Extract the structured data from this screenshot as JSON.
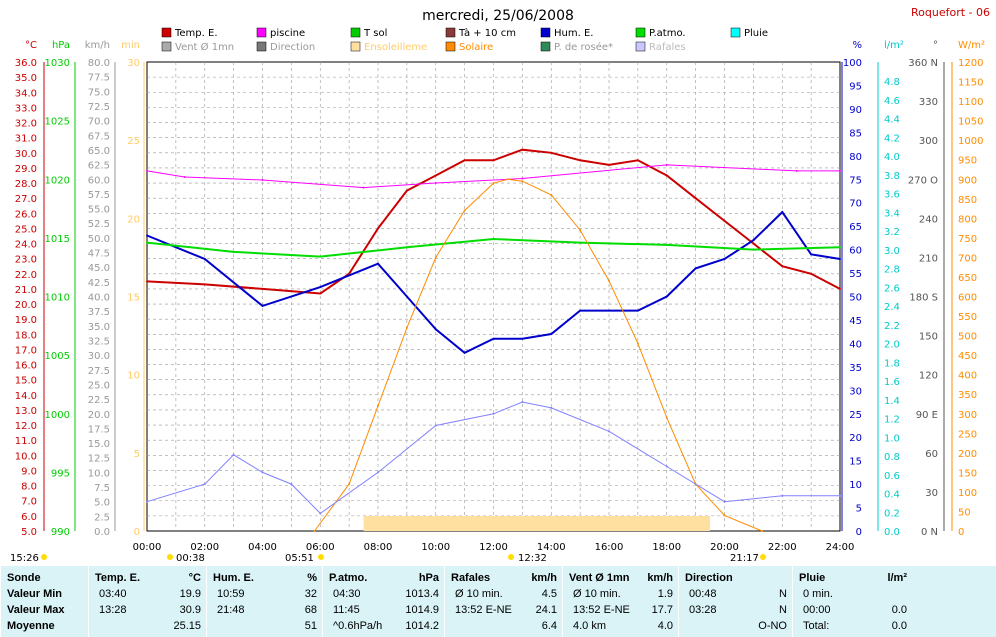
{
  "header": {
    "title": "mercredi, 25/06/2008",
    "station": "Roquefort - 06"
  },
  "legend": [
    {
      "label": "Temp. E.",
      "color": "#cc0000"
    },
    {
      "label": "piscine",
      "color": "#ff00ff"
    },
    {
      "label": "T sol",
      "color": "#00cc00"
    },
    {
      "label": "Tà + 10 cm",
      "color": "#8b3a3a"
    },
    {
      "label": "Hum. E.",
      "color": "#0000cc"
    },
    {
      "label": "P.atmo.",
      "color": "#00dd00"
    },
    {
      "label": "Pluie",
      "color": "#00ffff"
    },
    {
      "label": "Vent Ø 1mn",
      "color": "#aaaaaa"
    },
    {
      "label": "Direction",
      "color": "#777777"
    },
    {
      "label": "Ensoleilleme",
      "color": "#ffe0a0"
    },
    {
      "label": "Solaire",
      "color": "#ff8c00"
    },
    {
      "label": "P. de rosée*",
      "color": "#2e8b57"
    },
    {
      "label": "Rafales",
      "color": "#c8c8ff"
    }
  ],
  "axes": {
    "temp": {
      "unit": "°C",
      "color": "#cc0000",
      "ticks": [
        "35.0",
        "34.0",
        "33.0",
        "32.0",
        "31.0",
        "30.0",
        "29.0",
        "28.0",
        "27.0",
        "26.0",
        "25.0",
        "24.0",
        "23.0",
        "22.0",
        "21.0",
        "20.0",
        "19.0",
        "18.0",
        "17.0",
        "16.0",
        "15.0",
        "14.0",
        "13.0",
        "12.0",
        "11.0",
        "10.0",
        "9.0",
        "8.0",
        "7.0",
        "6.0",
        "5.0",
        "36.0"
      ]
    },
    "hpa": {
      "unit": "hPa",
      "color": "#00cc00",
      "ticks": [
        "1030",
        "1025",
        "1020",
        "1015",
        "1010",
        "1005",
        "1000",
        "995",
        "990"
      ]
    },
    "kmh": {
      "unit": "km/h",
      "color": "#999999",
      "ticks": [
        "80.0",
        "77.5",
        "75.0",
        "72.5",
        "70.0",
        "67.5",
        "65.0",
        "62.5",
        "60.0",
        "57.5",
        "55.0",
        "52.5",
        "50.0",
        "47.5",
        "45.0",
        "42.5",
        "40.0",
        "37.5",
        "35.0",
        "32.5",
        "30.0",
        "27.5",
        "25.0",
        "22.5",
        "20.0",
        "17.5",
        "15.0",
        "12.5",
        "10.0",
        "7.5",
        "5.0",
        "2.5",
        "0.0"
      ]
    },
    "min": {
      "unit": "min",
      "color": "#ffcc66",
      "ticks": [
        "30",
        "25",
        "20",
        "15",
        "10",
        "5",
        "0"
      ]
    },
    "pct": {
      "unit": "%",
      "color": "#0000cc",
      "ticks": [
        "100",
        "95",
        "90",
        "85",
        "80",
        "75",
        "70",
        "65",
        "60",
        "55",
        "50",
        "45",
        "40",
        "35",
        "30",
        "25",
        "20",
        "15",
        "10",
        "5",
        "0"
      ]
    },
    "lm2": {
      "unit": "l/m²",
      "color": "#00cccc",
      "ticks": [
        "4.8",
        "4.6",
        "4.4",
        "4.2",
        "4.0",
        "3.8",
        "3.6",
        "3.4",
        "3.2",
        "3.0",
        "2.8",
        "2.6",
        "2.4",
        "2.2",
        "2.0",
        "1.8",
        "1.6",
        "1.4",
        "1.2",
        "1.0",
        "0.8",
        "0.6",
        "0.4",
        "0.2",
        "0.0"
      ]
    },
    "deg": {
      "unit": "°",
      "color": "#555555",
      "ticks": [
        "360 N",
        "330",
        "300",
        "270 O",
        "240",
        "210",
        "180 S",
        "150",
        "120",
        "90 E",
        "60",
        "30",
        "0 N"
      ]
    },
    "wm2": {
      "unit": "W/m²",
      "color": "#ff8c00",
      "ticks": [
        "1200",
        "1150",
        "1100",
        "1050",
        "1000",
        "950",
        "900",
        "850",
        "800",
        "750",
        "700",
        "650",
        "600",
        "550",
        "500",
        "450",
        "400",
        "350",
        "300",
        "250",
        "200",
        "150",
        "100",
        "50",
        "0"
      ]
    },
    "x": [
      "00:00",
      "02:00",
      "04:00",
      "06:00",
      "08:00",
      "10:00",
      "12:00",
      "14:00",
      "16:00",
      "18:00",
      "20:00",
      "22:00",
      "24:00"
    ]
  },
  "markers": {
    "sunrise_left": "15:26",
    "m1": "00:38",
    "sunrise": "05:51",
    "noon": "12:32",
    "sunset": "21:17"
  },
  "chart_data": {
    "type": "line",
    "x_unit": "hour",
    "series": [
      {
        "name": "Temp. E.",
        "unit": "°C",
        "points": [
          [
            0,
            21.5
          ],
          [
            2,
            21.3
          ],
          [
            4,
            21.0
          ],
          [
            6,
            20.7
          ],
          [
            7,
            22.0
          ],
          [
            8,
            25.0
          ],
          [
            9,
            27.5
          ],
          [
            10,
            28.5
          ],
          [
            11,
            29.5
          ],
          [
            12,
            29.5
          ],
          [
            13,
            30.2
          ],
          [
            14,
            30.0
          ],
          [
            15,
            29.5
          ],
          [
            16,
            29.2
          ],
          [
            17,
            29.5
          ],
          [
            18,
            28.5
          ],
          [
            19,
            27.0
          ],
          [
            20,
            25.5
          ],
          [
            21,
            24.0
          ],
          [
            22,
            22.5
          ],
          [
            23,
            22.0
          ],
          [
            24,
            21.0
          ]
        ]
      },
      {
        "name": "piscine",
        "unit": "°C",
        "points": [
          [
            0,
            28.8
          ],
          [
            1.3,
            28.4
          ],
          [
            4,
            28.2
          ],
          [
            7.5,
            27.7
          ],
          [
            10,
            28.0
          ],
          [
            13,
            28.3
          ],
          [
            18,
            29.2
          ],
          [
            22.5,
            28.8
          ],
          [
            24,
            28.8
          ]
        ]
      },
      {
        "name": "Hum. E.",
        "unit": "%",
        "points": [
          [
            0,
            63
          ],
          [
            2,
            58
          ],
          [
            4,
            48
          ],
          [
            6,
            52
          ],
          [
            8,
            57
          ],
          [
            9,
            50
          ],
          [
            10,
            43
          ],
          [
            11,
            38
          ],
          [
            12,
            41
          ],
          [
            13,
            41
          ],
          [
            14,
            42
          ],
          [
            15,
            47
          ],
          [
            16,
            47
          ],
          [
            17,
            47
          ],
          [
            18,
            50
          ],
          [
            19,
            56
          ],
          [
            20,
            58
          ],
          [
            21,
            62
          ],
          [
            22,
            68
          ],
          [
            23,
            59
          ],
          [
            24,
            58
          ]
        ]
      },
      {
        "name": "P.atmo.",
        "unit": "hPa",
        "points": [
          [
            0,
            1014.6
          ],
          [
            3,
            1013.8
          ],
          [
            6,
            1013.4
          ],
          [
            9,
            1014.2
          ],
          [
            12,
            1014.9
          ],
          [
            15,
            1014.6
          ],
          [
            18,
            1014.4
          ],
          [
            21,
            1014.0
          ],
          [
            24,
            1014.2
          ]
        ]
      },
      {
        "name": "Solaire",
        "unit": "W/m²",
        "points": [
          [
            5.8,
            0
          ],
          [
            7,
            120
          ],
          [
            8,
            320
          ],
          [
            9,
            520
          ],
          [
            10,
            700
          ],
          [
            11,
            820
          ],
          [
            12,
            890
          ],
          [
            12.5,
            900
          ],
          [
            13,
            895
          ],
          [
            14,
            860
          ],
          [
            15,
            770
          ],
          [
            16,
            640
          ],
          [
            17,
            480
          ],
          [
            18,
            290
          ],
          [
            19,
            120
          ],
          [
            20,
            40
          ],
          [
            21.3,
            0
          ]
        ]
      },
      {
        "name": "Rafales",
        "unit": "km/h",
        "points": [
          [
            0,
            5
          ],
          [
            2,
            8
          ],
          [
            3,
            13
          ],
          [
            4,
            10
          ],
          [
            5,
            8
          ],
          [
            6,
            3
          ],
          [
            8,
            10
          ],
          [
            10,
            18
          ],
          [
            12,
            20
          ],
          [
            13,
            22
          ],
          [
            14,
            21
          ],
          [
            16,
            17
          ],
          [
            18,
            11
          ],
          [
            20,
            5
          ],
          [
            22,
            6
          ],
          [
            24,
            6
          ]
        ]
      }
    ]
  },
  "table": {
    "columns": [
      {
        "header": "Sonde",
        "unit": "",
        "rows": [
          "Valeur Min",
          "Valeur Max",
          "Moyenne"
        ]
      },
      {
        "header": "Temp. E.",
        "unit": "°C",
        "rows": [
          [
            "03:40",
            "19.9"
          ],
          [
            "13:28",
            "30.9"
          ],
          [
            "",
            "25.15"
          ]
        ]
      },
      {
        "header": "Hum. E.",
        "unit": "%",
        "rows": [
          [
            "10:59",
            "32"
          ],
          [
            "21:48",
            "68"
          ],
          [
            "",
            "51"
          ]
        ]
      },
      {
        "header": "P.atmo.",
        "unit": "hPa",
        "rows": [
          [
            "04:30",
            "1013.4"
          ],
          [
            "11:45",
            "1014.9"
          ],
          [
            "^0.6hPa/h",
            "1014.2"
          ]
        ]
      },
      {
        "header": "Rafales",
        "unit": "km/h",
        "rows": [
          [
            "Ø 10 min.",
            "4.5"
          ],
          [
            "13:52    E-NE",
            "24.1"
          ],
          [
            "",
            "6.4"
          ]
        ]
      },
      {
        "header": "Vent Ø 1mn",
        "unit": "km/h",
        "rows": [
          [
            "Ø 10 min.",
            "1.9"
          ],
          [
            "13:52    E-NE",
            "17.7"
          ],
          [
            "4.0 km",
            "4.0"
          ]
        ]
      },
      {
        "header": "Direction",
        "unit": "",
        "rows": [
          [
            "00:48",
            "N"
          ],
          [
            "03:28",
            "N"
          ],
          [
            "",
            "O-NO"
          ]
        ]
      },
      {
        "header": "Pluie",
        "unit": "l/m²",
        "rows": [
          [
            "0 min.",
            ""
          ],
          [
            "00:00",
            "0.0"
          ],
          [
            "Total:",
            "0.0"
          ]
        ]
      }
    ]
  }
}
